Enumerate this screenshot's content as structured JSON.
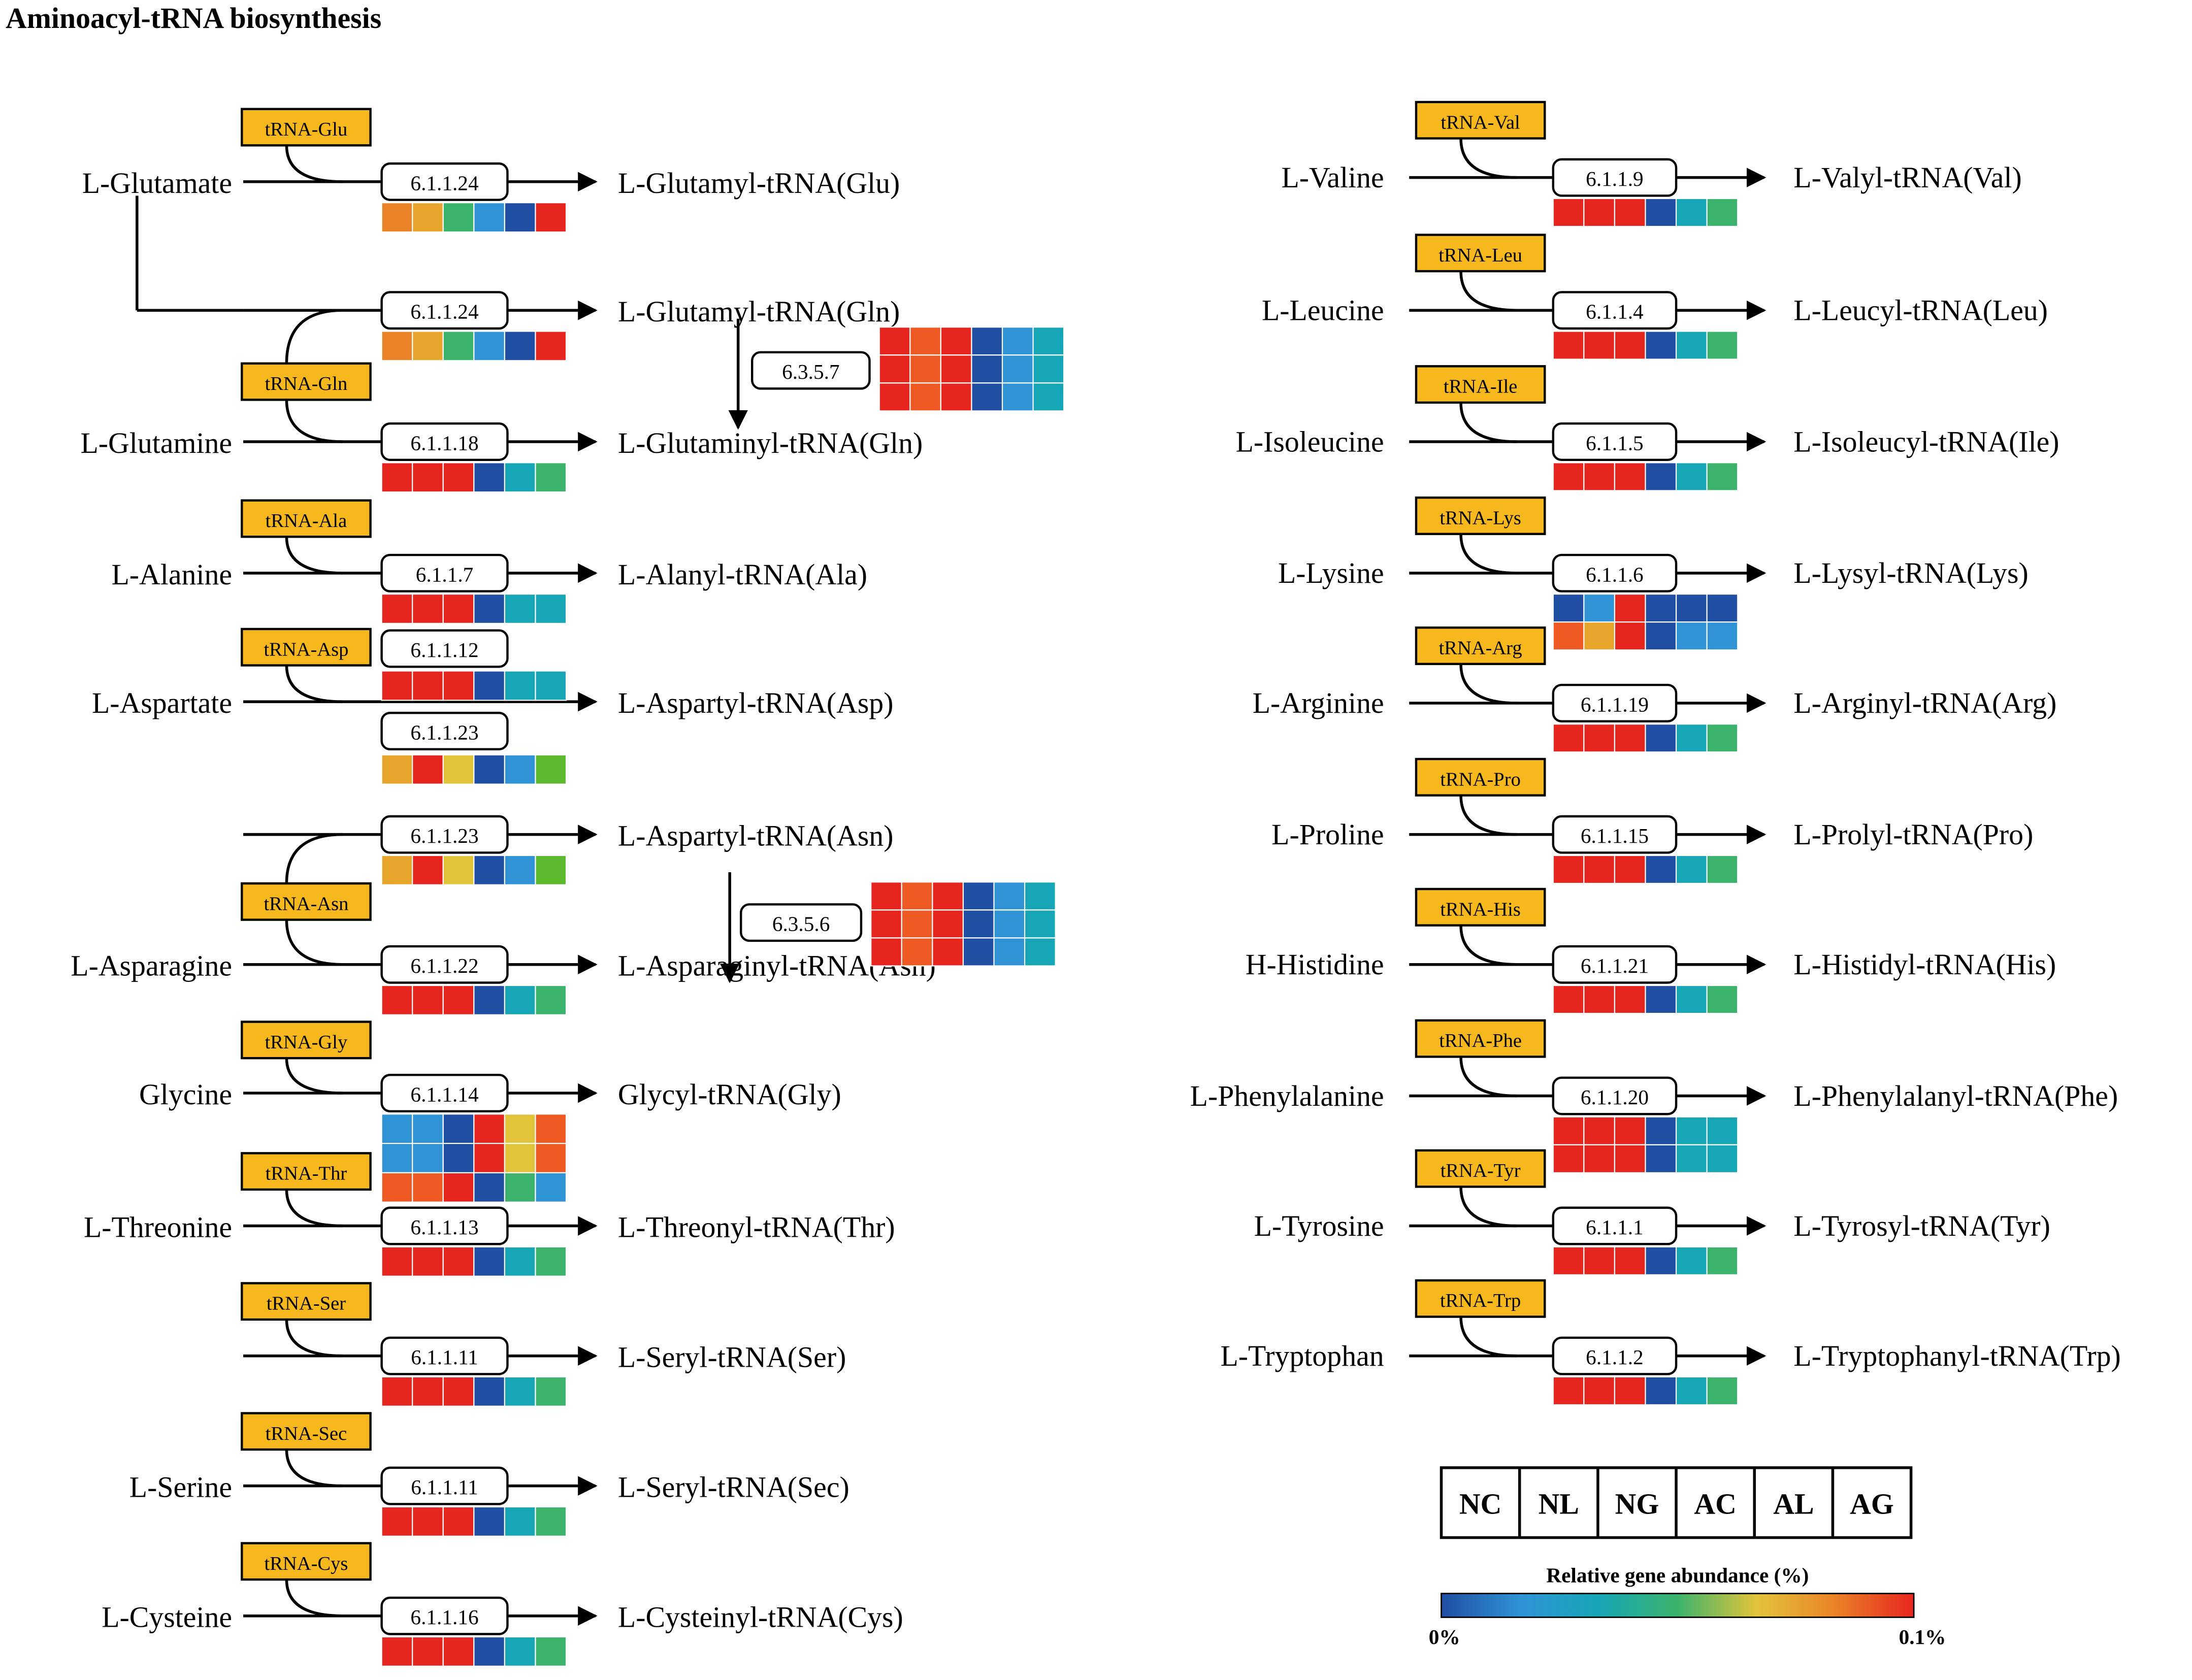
{
  "title": "Aminoacyl-tRNA biosynthesis",
  "colors": {
    "c0": "#1f4ea3",
    "c1": "#2f93d6",
    "c2": "#16a6b6",
    "c3": "#3bb36c",
    "c4": "#5cb82c",
    "c5": "#e2c43a",
    "c6": "#e7a52b",
    "c7": "#ea8227",
    "c8": "#ef5a24",
    "c9": "#e7251f",
    "trna_fill": "#f6b81c"
  },
  "reactions": [
    {
      "id": "glu",
      "substrate": "L-Glutamate",
      "trna": "tRNA-Glu",
      "ec": "6.1.1.24",
      "product": "L-Glutamyl-tRNA(Glu)",
      "heat": [
        [
          "c7",
          "c6",
          "c3",
          "c1",
          "c0",
          "c9"
        ]
      ]
    },
    {
      "id": "glu-gln",
      "substrate": "",
      "trna": "",
      "ec": "6.1.1.24",
      "product": "L-Glutamyl-tRNA(Gln)",
      "heat": [
        [
          "c7",
          "c6",
          "c3",
          "c1",
          "c0",
          "c9"
        ]
      ]
    },
    {
      "id": "gln",
      "substrate": "L-Glutamine",
      "trna": "tRNA-Gln",
      "ec": "6.1.1.18",
      "product": "L-Glutaminyl-tRNA(Gln)",
      "heat": [
        [
          "c9",
          "c9",
          "c9",
          "c0",
          "c2",
          "c3"
        ]
      ]
    },
    {
      "id": "ala",
      "substrate": "L-Alanine",
      "trna": "tRNA-Ala",
      "ec": "6.1.1.7",
      "product": "L-Alanyl-tRNA(Ala)",
      "heat": [
        [
          "c9",
          "c9",
          "c9",
          "c0",
          "c2",
          "c2"
        ]
      ]
    },
    {
      "id": "asp",
      "substrate": "L-Aspartate",
      "trna": "tRNA-Asp",
      "ec": "6.1.1.12",
      "ec2": "6.1.1.23",
      "product": "L-Aspartyl-tRNA(Asp)",
      "heat": [
        [
          "c9",
          "c9",
          "c9",
          "c0",
          "c2",
          "c2"
        ]
      ],
      "heat2": [
        [
          "c6",
          "c9",
          "c5",
          "c0",
          "c1",
          "c4"
        ]
      ]
    },
    {
      "id": "asp-asn",
      "substrate": "",
      "trna": "",
      "ec": "6.1.1.23",
      "product": "L-Aspartyl-tRNA(Asn)",
      "heat": [
        [
          "c6",
          "c9",
          "c5",
          "c0",
          "c1",
          "c4"
        ]
      ]
    },
    {
      "id": "asn",
      "substrate": "L-Asparagine",
      "trna": "tRNA-Asn",
      "ec": "6.1.1.22",
      "product": "L-Asparaginyl-tRNA(Asn)",
      "heat": [
        [
          "c9",
          "c9",
          "c9",
          "c0",
          "c2",
          "c3"
        ]
      ]
    },
    {
      "id": "gly",
      "substrate": "Glycine",
      "trna": "tRNA-Gly",
      "ec": "6.1.1.14",
      "product": "Glycyl-tRNA(Gly)",
      "heat": [
        [
          "c1",
          "c1",
          "c0",
          "c9",
          "c5",
          "c8"
        ],
        [
          "c1",
          "c1",
          "c0",
          "c9",
          "c5",
          "c8"
        ],
        [
          "c8",
          "c8",
          "c9",
          "c0",
          "c3",
          "c1"
        ]
      ]
    },
    {
      "id": "thr",
      "substrate": "L-Threonine",
      "trna": "tRNA-Thr",
      "ec": "6.1.1.13",
      "product": "L-Threonyl-tRNA(Thr)",
      "heat": [
        [
          "c9",
          "c9",
          "c9",
          "c0",
          "c2",
          "c3"
        ]
      ]
    },
    {
      "id": "ser",
      "substrate": "",
      "trna": "tRNA-Ser",
      "ec": "6.1.1.11",
      "product": "L-Seryl-tRNA(Ser)",
      "heat": [
        [
          "c9",
          "c9",
          "c9",
          "c0",
          "c2",
          "c3"
        ]
      ]
    },
    {
      "id": "sec",
      "substrate": "L-Serine",
      "trna": "tRNA-Sec",
      "ec": "6.1.1.11",
      "product": "L-Seryl-tRNA(Sec)",
      "heat": [
        [
          "c9",
          "c9",
          "c9",
          "c0",
          "c2",
          "c3"
        ]
      ]
    },
    {
      "id": "cys",
      "substrate": "L-Cysteine",
      "trna": "tRNA-Cys",
      "ec": "6.1.1.16",
      "product": "L-Cysteinyl-tRNA(Cys)",
      "heat": [
        [
          "c9",
          "c9",
          "c9",
          "c0",
          "c2",
          "c3"
        ]
      ]
    },
    {
      "id": "val",
      "substrate": "L-Valine",
      "trna": "tRNA-Val",
      "ec": "6.1.1.9",
      "product": "L-Valyl-tRNA(Val)",
      "heat": [
        [
          "c9",
          "c9",
          "c9",
          "c0",
          "c2",
          "c3"
        ]
      ]
    },
    {
      "id": "leu",
      "substrate": "L-Leucine",
      "trna": "tRNA-Leu",
      "ec": "6.1.1.4",
      "product": "L-Leucyl-tRNA(Leu)",
      "heat": [
        [
          "c9",
          "c9",
          "c9",
          "c0",
          "c2",
          "c3"
        ]
      ]
    },
    {
      "id": "ile",
      "substrate": "L-Isoleucine",
      "trna": "tRNA-Ile",
      "ec": "6.1.1.5",
      "product": "L-Isoleucyl-tRNA(Ile)",
      "heat": [
        [
          "c9",
          "c9",
          "c9",
          "c0",
          "c2",
          "c3"
        ]
      ]
    },
    {
      "id": "lys",
      "substrate": "L-Lysine",
      "trna": "tRNA-Lys",
      "ec": "6.1.1.6",
      "product": "L-Lysyl-tRNA(Lys)",
      "heat": [
        [
          "c0",
          "c1",
          "c9",
          "c0",
          "c0",
          "c0"
        ],
        [
          "c8",
          "c6",
          "c9",
          "c0",
          "c1",
          "c1"
        ]
      ]
    },
    {
      "id": "arg",
      "substrate": "L-Arginine",
      "trna": "tRNA-Arg",
      "ec": "6.1.1.19",
      "product": "L-Arginyl-tRNA(Arg)",
      "heat": [
        [
          "c9",
          "c9",
          "c9",
          "c0",
          "c2",
          "c3"
        ]
      ]
    },
    {
      "id": "pro",
      "substrate": "L-Proline",
      "trna": "tRNA-Pro",
      "ec": "6.1.1.15",
      "product": "L-Prolyl-tRNA(Pro)",
      "heat": [
        [
          "c9",
          "c9",
          "c9",
          "c0",
          "c2",
          "c3"
        ]
      ]
    },
    {
      "id": "his",
      "substrate": "H-Histidine",
      "trna": "tRNA-His",
      "ec": "6.1.1.21",
      "product": "L-Histidyl-tRNA(His)",
      "heat": [
        [
          "c9",
          "c9",
          "c9",
          "c0",
          "c2",
          "c3"
        ]
      ]
    },
    {
      "id": "phe",
      "substrate": "L-Phenylalanine",
      "trna": "tRNA-Phe",
      "ec": "6.1.1.20",
      "product": "L-Phenylalanyl-tRNA(Phe)",
      "heat": [
        [
          "c9",
          "c9",
          "c9",
          "c0",
          "c2",
          "c2"
        ],
        [
          "c9",
          "c9",
          "c9",
          "c0",
          "c2",
          "c2"
        ]
      ]
    },
    {
      "id": "tyr",
      "substrate": "L-Tyrosine",
      "trna": "tRNA-Tyr",
      "ec": "6.1.1.1",
      "product": "L-Tyrosyl-tRNA(Tyr)",
      "heat": [
        [
          "c9",
          "c9",
          "c9",
          "c0",
          "c2",
          "c3"
        ]
      ]
    },
    {
      "id": "trp",
      "substrate": "L-Tryptophan",
      "trna": "tRNA-Trp",
      "ec": "6.1.1.2",
      "product": "L-Tryptophanyl-tRNA(Trp)",
      "heat": [
        [
          "c9",
          "c9",
          "c9",
          "c0",
          "c2",
          "c3"
        ]
      ]
    }
  ],
  "amidotransferases": [
    {
      "id": "gln-amido",
      "ec": "6.3.5.7",
      "heat": [
        [
          "c9",
          "c8",
          "c9",
          "c0",
          "c1",
          "c2"
        ],
        [
          "c9",
          "c8",
          "c9",
          "c0",
          "c1",
          "c2"
        ],
        [
          "c9",
          "c8",
          "c9",
          "c0",
          "c1",
          "c2"
        ]
      ]
    },
    {
      "id": "asn-amido",
      "ec": "6.3.5.6",
      "heat": [
        [
          "c9",
          "c8",
          "c9",
          "c0",
          "c1",
          "c2"
        ],
        [
          "c9",
          "c8",
          "c9",
          "c0",
          "c1",
          "c2"
        ],
        [
          "c9",
          "c8",
          "c9",
          "c0",
          "c1",
          "c2"
        ]
      ]
    }
  ],
  "legend": {
    "groups": [
      "NC",
      "NL",
      "NG",
      "AC",
      "AL",
      "AG"
    ],
    "scale_title": "Relative gene abundance (%)",
    "min_label": "0%",
    "max_label": "0.1%",
    "gradient": [
      "#1f4ea3",
      "#2f93d6",
      "#16a6b6",
      "#3bb36c",
      "#e2c43a",
      "#ea8227",
      "#e7251f"
    ]
  }
}
